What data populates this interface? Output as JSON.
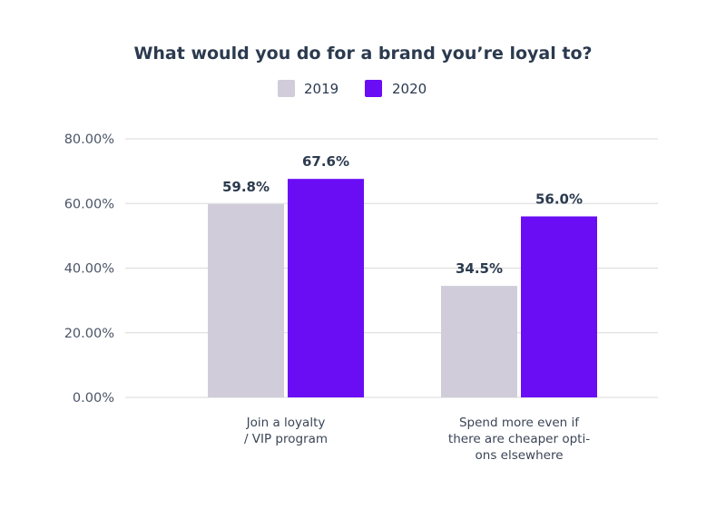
{
  "chart_data": {
    "type": "bar",
    "title": "What would you do for a brand you’re loyal to?",
    "categories": [
      [
        "Join a loyalty",
        "/ VIP program"
      ],
      [
        "Spend more even if",
        "there are cheaper opti-",
        "ons elsewhere"
      ]
    ],
    "series": [
      {
        "name": "2019",
        "color": "#d0ccd9",
        "values": [
          59.8,
          34.5
        ],
        "labels": [
          "59.8%",
          "34.5%"
        ]
      },
      {
        "name": "2020",
        "color": "#6a0df5",
        "values": [
          67.6,
          56.0
        ],
        "labels": [
          "67.6%",
          "56.0%"
        ]
      }
    ],
    "ylim": [
      0,
      80
    ],
    "yticks": [
      0,
      20,
      40,
      60,
      80
    ],
    "ytick_labels": [
      "0.00%",
      "20.00%",
      "40.00%",
      "60.00%",
      "80.00%"
    ],
    "grid": true,
    "legend": "top-center"
  }
}
